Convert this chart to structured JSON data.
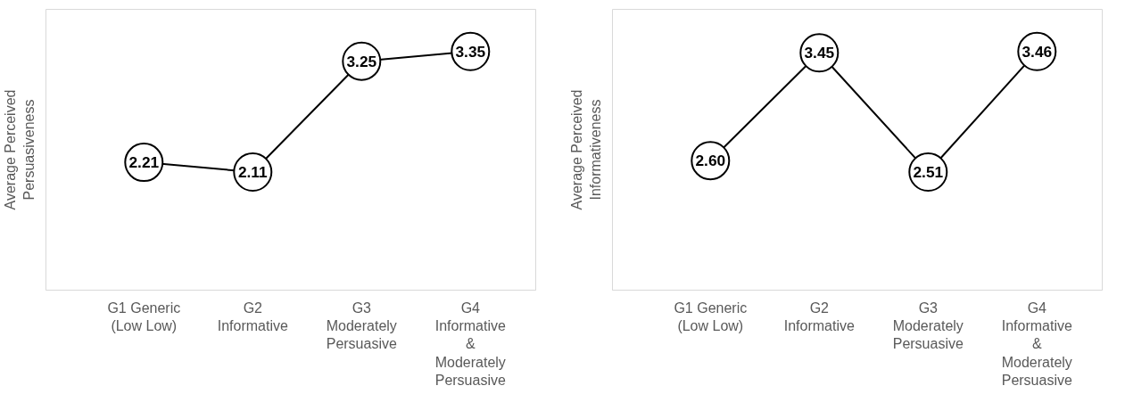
{
  "chart_data": [
    {
      "type": "line",
      "ylabel": "Average Perceived Persuasiveness",
      "categories": [
        "G1 Generic (Low Low)",
        "G2 Informative",
        "G3 Moderately Persuasive",
        "G4 Informative & Moderately Persuasive"
      ],
      "series": [
        {
          "color": "#000000",
          "values": [
            2.21,
            2.11,
            3.25,
            3.35
          ],
          "value_labels": [
            "2.21",
            "2.11",
            "3.25",
            "3.35"
          ]
        }
      ],
      "marker": "circle",
      "tick_labels": "x"
    },
    {
      "type": "line",
      "ylabel": "Average Perceived Informativeness",
      "categories": [
        "G1 Generic (Low Low)",
        "G2 Informative",
        "G3 Moderately Persuasive",
        "G4 Informative & Moderately Persuasive"
      ],
      "series": [
        {
          "color": "#000000",
          "values": [
            2.6,
            3.45,
            2.51,
            3.46
          ],
          "value_labels": [
            "2.60",
            "3.45",
            "2.51",
            "3.46"
          ]
        }
      ],
      "marker": "circle",
      "tick_labels": "x"
    }
  ]
}
